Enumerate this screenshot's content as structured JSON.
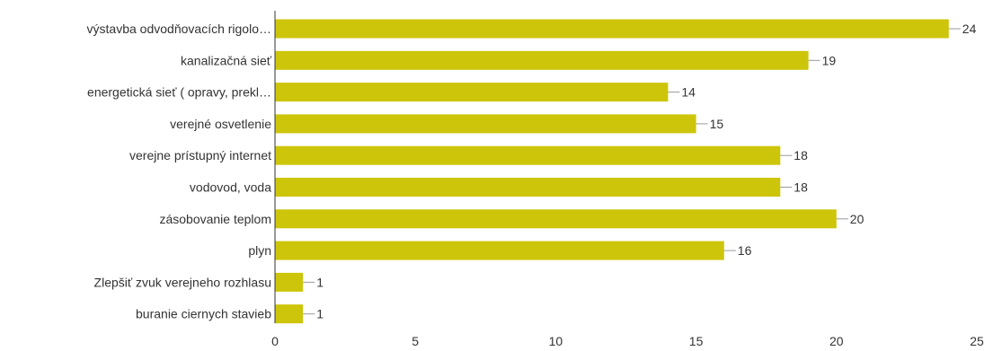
{
  "chart_data": {
    "type": "bar",
    "orientation": "horizontal",
    "title": "",
    "xlabel": "",
    "ylabel": "",
    "categories": [
      "výstavba odvodňovacích rigolo…",
      "kanalizačná sieť",
      "energetická sieť ( opravy, prekl…",
      "verejné osvetlenie",
      "verejne prístupný internet",
      "vodovod, voda",
      "zásobovanie teplom",
      "plyn",
      "Zlepšiť zvuk verejneho rozhlasu",
      "buranie ciernych stavieb"
    ],
    "values": [
      24,
      19,
      14,
      15,
      18,
      18,
      20,
      16,
      1,
      1
    ],
    "xlim": [
      0,
      25
    ],
    "xticks": [
      0,
      5,
      10,
      15,
      20,
      25
    ],
    "grid": false,
    "legend": "none",
    "bar_color": "#cdc50a",
    "axis_color": "#333333",
    "leader_color": "#999999"
  }
}
